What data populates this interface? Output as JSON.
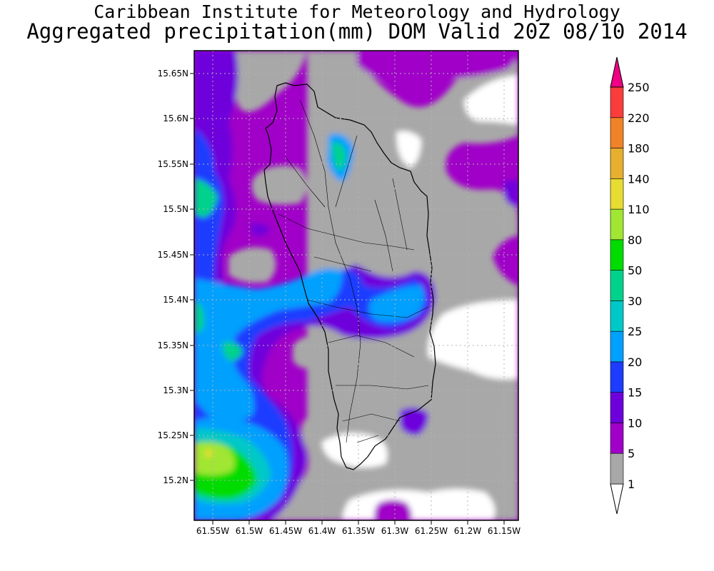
{
  "title": "Caribbean Institute for Meteorology and Hydrology",
  "subtitle": "Aggregated precipitation(mm) DOM Valid 20Z 08/10 2014",
  "map": {
    "lat_labels": [
      "15.65N",
      "15.6N",
      "15.55N",
      "15.5N",
      "15.45N",
      "15.4N",
      "15.35N",
      "15.3N",
      "15.25N",
      "15.2N"
    ],
    "lon_labels": [
      "61.55W",
      "61.5W",
      "61.45W",
      "61.4W",
      "61.35W",
      "61.3W",
      "61.25W",
      "61.2W",
      "61.15W"
    ]
  },
  "colorbar": {
    "levels": [
      "1",
      "5",
      "10",
      "15",
      "20",
      "25",
      "30",
      "50",
      "80",
      "110",
      "140",
      "180",
      "220",
      "250"
    ],
    "colors": [
      "#ffffff",
      "#a8a8a8",
      "#a000c8",
      "#6e00dc",
      "#1e3cff",
      "#00a0ff",
      "#00c8c8",
      "#00d28c",
      "#00dc00",
      "#a0e632",
      "#e6dc32",
      "#e6af2d",
      "#f08228",
      "#fa3c3c",
      "#f00082"
    ]
  }
}
